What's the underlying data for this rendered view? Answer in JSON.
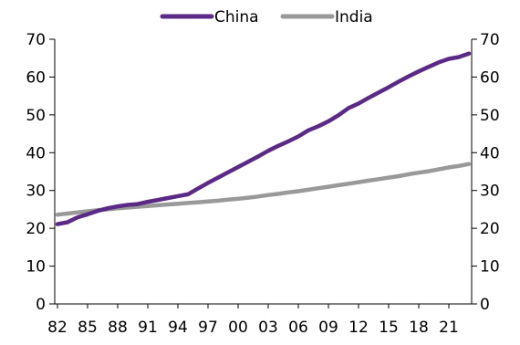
{
  "chart_data": {
    "type": "line",
    "title": "",
    "xlabel": "",
    "ylabel": "",
    "ylim": [
      0,
      70
    ],
    "yticks": [
      "0",
      "10",
      "20",
      "30",
      "40",
      "50",
      "60",
      "70"
    ],
    "right_axis_mirrors_left": true,
    "x_tick_labels": [
      "82",
      "85",
      "88",
      "91",
      "94",
      "97",
      "00",
      "03",
      "06",
      "09",
      "12",
      "15",
      "18",
      "21"
    ],
    "x": [
      1982,
      1983,
      1984,
      1985,
      1986,
      1987,
      1988,
      1989,
      1990,
      1991,
      1992,
      1993,
      1994,
      1995,
      1996,
      1997,
      1998,
      1999,
      2000,
      2001,
      2002,
      2003,
      2004,
      2005,
      2006,
      2007,
      2008,
      2009,
      2010,
      2011,
      2012,
      2013,
      2014,
      2015,
      2016,
      2017,
      2018,
      2019,
      2020,
      2021,
      2022,
      2023
    ],
    "grid": false,
    "legend_position": "top-center",
    "series": [
      {
        "name": "China",
        "color": "#5b2a86",
        "values": [
          21.1,
          21.6,
          22.9,
          23.7,
          24.6,
          25.3,
          25.8,
          26.2,
          26.4,
          27.0,
          27.5,
          28.0,
          28.5,
          29.0,
          30.5,
          32.0,
          33.4,
          34.8,
          36.2,
          37.6,
          39.0,
          40.5,
          41.8,
          43.0,
          44.3,
          45.9,
          47.0,
          48.3,
          49.9,
          51.8,
          53.0,
          54.5,
          55.9,
          57.3,
          58.8,
          60.2,
          61.5,
          62.7,
          63.9,
          64.8,
          65.3,
          66.2
        ]
      },
      {
        "name": "India",
        "color": "#999999",
        "values": [
          23.6,
          23.9,
          24.2,
          24.5,
          24.8,
          25.0,
          25.3,
          25.5,
          25.7,
          25.9,
          26.1,
          26.3,
          26.5,
          26.7,
          26.9,
          27.1,
          27.3,
          27.6,
          27.8,
          28.1,
          28.4,
          28.8,
          29.1,
          29.5,
          29.8,
          30.2,
          30.6,
          31.0,
          31.4,
          31.8,
          32.2,
          32.6,
          33.0,
          33.4,
          33.8,
          34.3,
          34.7,
          35.1,
          35.6,
          36.1,
          36.5,
          37.0
        ]
      }
    ]
  }
}
